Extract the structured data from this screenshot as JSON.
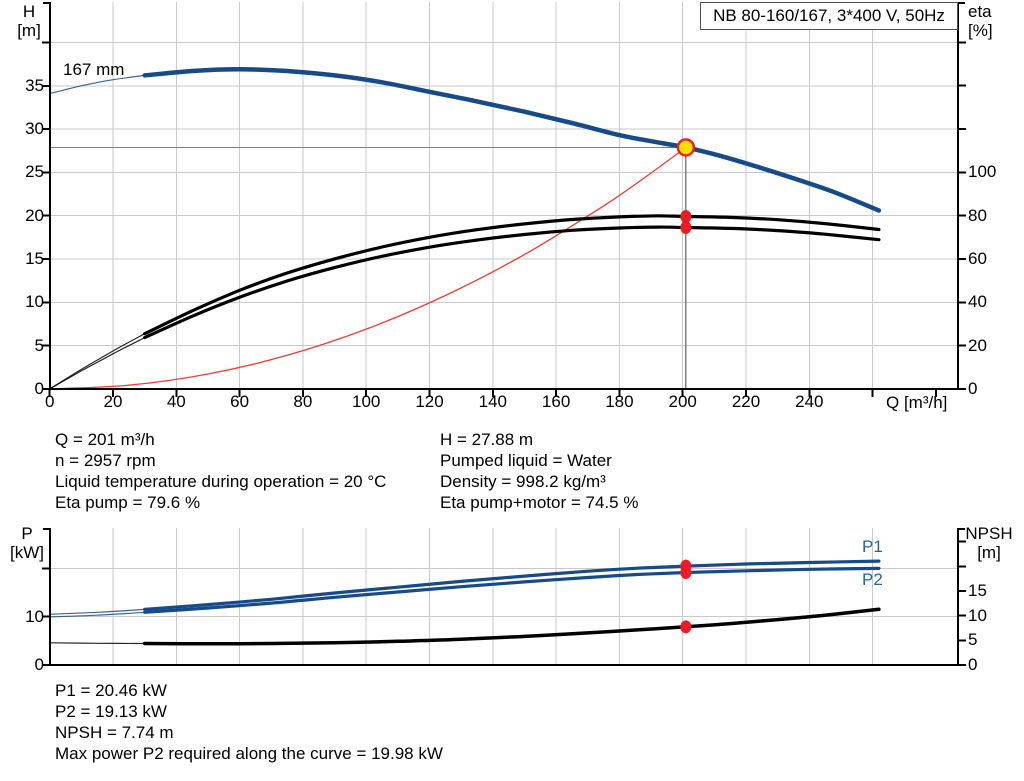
{
  "title_box": {
    "label": "NB 80-160/167, 3*400 V, 50Hz"
  },
  "operating_info": {
    "left_column": [
      "Q = 201 m³/h",
      "n = 2957 rpm",
      "Liquid temperature during operation = 20 °C",
      "Eta pump = 79.6 %"
    ],
    "right_column": [
      "H = 27.88 m",
      "Pumped liquid = Water",
      "Density = 998.2 kg/m³",
      "Eta pump+motor = 74.5 %"
    ]
  },
  "power_info": [
    "P1 = 20.46 kW",
    "P2 = 19.13 kW",
    "NPSH = 7.74 m",
    "Max power P2 required along the curve = 19.98 kW"
  ],
  "colors": {
    "curve_blue": "#174a89",
    "marker_red": "#ed1c24",
    "system_red": "#ee3b33",
    "duty_yellow": "#ffdf00",
    "grid": "#c9c9c9",
    "axis": "#000000",
    "crosshair": "#7f7f7f",
    "label_blue": "#2465a8",
    "text": "#000000"
  },
  "chart_data": [
    {
      "id": "qh-eta-chart",
      "type": "line",
      "title": "NB 80-160/167, 3*400 V, 50Hz",
      "xlabel": "Q [m³/h]",
      "ylabel_left": [
        "H",
        "[m]"
      ],
      "ylabel_right": [
        "eta",
        "[%]"
      ],
      "xlim": [
        0,
        287
      ],
      "ylim_left": [
        0,
        44.5
      ],
      "ylim_right": [
        0,
        178
      ],
      "grid": true,
      "x_ticks": [
        0,
        20,
        40,
        60,
        80,
        100,
        120,
        140,
        160,
        180,
        200,
        220,
        240
      ],
      "x_minor_ticks": [
        260,
        280
      ],
      "y_left_ticks": [
        0,
        5,
        10,
        15,
        20,
        25,
        30,
        35
      ],
      "y_left_minor_ticks": [
        40
      ],
      "y_right_ticks": [
        0,
        20,
        40,
        60,
        80,
        100
      ],
      "y_right_minor_ticks": [
        120,
        140,
        160
      ],
      "grid_x": [
        20,
        40,
        60,
        80,
        100,
        120,
        140,
        160,
        180,
        200,
        220,
        240,
        260
      ],
      "grid_y_left": [
        5,
        10,
        15,
        20,
        25,
        30,
        35,
        40
      ],
      "curve_label": {
        "text": "167 mm"
      },
      "series": [
        {
          "name": "head_167mm",
          "axis": "left",
          "color": "blue",
          "width": 4.5,
          "thin_until": 26,
          "points": [
            [
              0,
              34.1
            ],
            [
              10,
              35.0
            ],
            [
              20,
              35.7
            ],
            [
              30,
              36.2
            ],
            [
              45,
              36.7
            ],
            [
              60,
              36.9
            ],
            [
              75,
              36.7
            ],
            [
              90,
              36.2
            ],
            [
              105,
              35.4
            ],
            [
              120,
              34.3
            ],
            [
              135,
              33.2
            ],
            [
              150,
              32.0
            ],
            [
              165,
              30.7
            ],
            [
              180,
              29.3
            ],
            [
              190,
              28.6
            ],
            [
              201,
              27.88
            ],
            [
              212,
              26.9
            ],
            [
              224,
              25.6
            ],
            [
              236,
              24.2
            ],
            [
              248,
              22.7
            ],
            [
              262,
              20.6
            ]
          ]
        },
        {
          "name": "eta_pump",
          "axis": "right",
          "color": "black",
          "width": 3.2,
          "thin_until": 26,
          "points": [
            [
              0,
              0
            ],
            [
              10,
              9
            ],
            [
              20,
              17.5
            ],
            [
              30,
              25.5
            ],
            [
              45,
              36
            ],
            [
              60,
              45.5
            ],
            [
              75,
              53.5
            ],
            [
              90,
              60
            ],
            [
              105,
              65.5
            ],
            [
              120,
              70
            ],
            [
              135,
              73.5
            ],
            [
              150,
              76.2
            ],
            [
              165,
              78.2
            ],
            [
              180,
              79.4
            ],
            [
              192,
              79.9
            ],
            [
              201,
              79.6
            ],
            [
              215,
              79.2
            ],
            [
              230,
              78.1
            ],
            [
              245,
              76.3
            ],
            [
              262,
              73.6
            ]
          ]
        },
        {
          "name": "eta_pump_motor",
          "axis": "right",
          "color": "black",
          "width": 3.2,
          "thin_until": 26,
          "points": [
            [
              0,
              0
            ],
            [
              10,
              8.3
            ],
            [
              20,
              16.2
            ],
            [
              30,
              23.7
            ],
            [
              45,
              33.5
            ],
            [
              60,
              42.3
            ],
            [
              75,
              49.8
            ],
            [
              90,
              56
            ],
            [
              105,
              61.2
            ],
            [
              120,
              65.4
            ],
            [
              135,
              68.7
            ],
            [
              150,
              71.3
            ],
            [
              165,
              73.2
            ],
            [
              180,
              74.3
            ],
            [
              192,
              74.7
            ],
            [
              201,
              74.5
            ],
            [
              215,
              74.1
            ],
            [
              230,
              73.1
            ],
            [
              245,
              71.4
            ],
            [
              262,
              68.9
            ]
          ]
        },
        {
          "name": "system_curve",
          "axis": "left",
          "color": "red",
          "width": 1.3,
          "points": [
            [
              0,
              0
            ],
            [
              25,
              0.43
            ],
            [
              50,
              1.72
            ],
            [
              75,
              3.88
            ],
            [
              100,
              6.9
            ],
            [
              125,
              10.78
            ],
            [
              150,
              15.52
            ],
            [
              175,
              21.13
            ],
            [
              188,
              24.4
            ],
            [
              201,
              27.88
            ]
          ]
        }
      ],
      "duty_point": {
        "q": 201,
        "h": 27.88
      },
      "markers": [
        {
          "q": 201,
          "value": 79.6,
          "axis": "right"
        },
        {
          "q": 201,
          "value": 74.5,
          "axis": "right"
        }
      ]
    },
    {
      "id": "power-npsh-chart",
      "type": "line",
      "xlabel": "",
      "ylabel_left": [
        "P",
        "[kW]"
      ],
      "ylabel_right": [
        "NPSH",
        "[m]"
      ],
      "xlim": [
        0,
        287
      ],
      "ylim_left": [
        0,
        28.3
      ],
      "ylim_right": [
        0,
        27.8
      ],
      "grid": true,
      "y_left_ticks": [
        0,
        10
      ],
      "y_left_minor_ticks": [
        20
      ],
      "y_right_ticks": [
        0,
        5,
        10,
        15
      ],
      "y_right_minor_ticks": [
        20,
        25
      ],
      "grid_x": [
        20,
        40,
        60,
        80,
        100,
        120,
        140,
        160,
        180,
        200,
        220,
        240,
        260
      ],
      "grid_y_left": [
        10,
        20
      ],
      "series": [
        {
          "name": "P1",
          "label": "P1",
          "axis": "left",
          "color": "blue",
          "width": 3.2,
          "thin_until": 26,
          "points": [
            [
              0,
              10.5
            ],
            [
              15,
              10.9
            ],
            [
              30,
              11.5
            ],
            [
              50,
              12.5
            ],
            [
              70,
              13.6
            ],
            [
              90,
              14.9
            ],
            [
              110,
              16.1
            ],
            [
              130,
              17.3
            ],
            [
              150,
              18.4
            ],
            [
              170,
              19.4
            ],
            [
              185,
              20.0
            ],
            [
              201,
              20.46
            ],
            [
              220,
              20.9
            ],
            [
              240,
              21.2
            ],
            [
              262,
              21.5
            ]
          ]
        },
        {
          "name": "P2",
          "label": "P2",
          "axis": "left",
          "color": "blue",
          "width": 3.2,
          "thin_until": 26,
          "points": [
            [
              0,
              9.95
            ],
            [
              15,
              10.3
            ],
            [
              30,
              10.9
            ],
            [
              50,
              11.8
            ],
            [
              70,
              12.8
            ],
            [
              90,
              14.0
            ],
            [
              110,
              15.1
            ],
            [
              130,
              16.2
            ],
            [
              150,
              17.2
            ],
            [
              170,
              18.1
            ],
            [
              185,
              18.7
            ],
            [
              201,
              19.13
            ],
            [
              220,
              19.5
            ],
            [
              240,
              19.8
            ],
            [
              262,
              19.98
            ]
          ]
        },
        {
          "name": "NPSH",
          "axis": "right",
          "color": "black",
          "width": 3.5,
          "thin_until": 26,
          "points": [
            [
              0,
              4.5
            ],
            [
              15,
              4.4
            ],
            [
              30,
              4.35
            ],
            [
              50,
              4.3
            ],
            [
              70,
              4.35
            ],
            [
              90,
              4.5
            ],
            [
              110,
              4.8
            ],
            [
              130,
              5.2
            ],
            [
              150,
              5.8
            ],
            [
              170,
              6.5
            ],
            [
              185,
              7.1
            ],
            [
              201,
              7.74
            ],
            [
              215,
              8.4
            ],
            [
              230,
              9.2
            ],
            [
              245,
              10.1
            ],
            [
              262,
              11.3
            ]
          ]
        }
      ],
      "markers": [
        {
          "q": 201,
          "value": 20.46,
          "axis": "left"
        },
        {
          "q": 201,
          "value": 19.13,
          "axis": "left"
        },
        {
          "q": 201,
          "value": 7.74,
          "axis": "right"
        }
      ]
    }
  ]
}
